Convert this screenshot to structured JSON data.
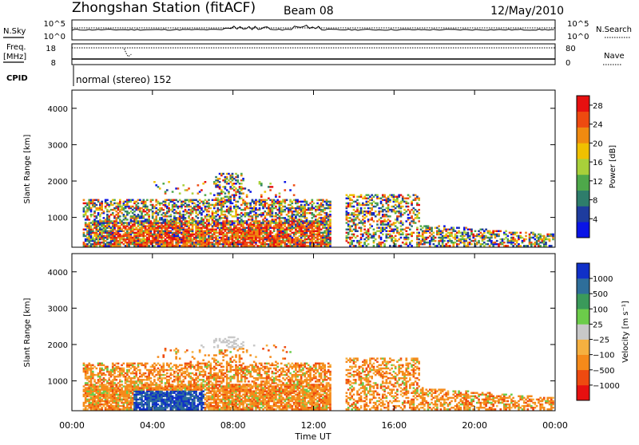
{
  "header": {
    "station_title": "Zhongshan Station (fitACF)",
    "beam_label": "Beam 08",
    "date_label": "12/May/2010"
  },
  "top_panels": {
    "nsky_label": "N.Sky",
    "nsky_ticks": [
      "10^5",
      "10^0"
    ],
    "nsearch_label": "N.Search",
    "nsearch_ticks": [
      "10^5",
      "10^0"
    ],
    "freq_label_line1": "Freq.",
    "freq_label_line2": "[MHz]",
    "freq_ticks": [
      "18",
      "8"
    ],
    "nave_label": "Nave",
    "nave_ticks": [
      "80",
      "0"
    ],
    "cpid_label": "CPID",
    "cpid_text": "normal (stereo) 152"
  },
  "colors": {
    "power_scale": [
      "#0a14e6",
      "#1e3c9e",
      "#2e7d6b",
      "#4ea84a",
      "#a8d03a",
      "#f0c000",
      "#f08a10",
      "#ee4a10",
      "#e61010"
    ],
    "velocity_scale": [
      "#e61010",
      "#ee4a10",
      "#f58a1a",
      "#f5b040",
      "#c8c8c8",
      "#6ccc4a",
      "#3a9a5a",
      "#2e6e9a",
      "#1030c8"
    ]
  },
  "chart_data": [
    {
      "type": "heatmap",
      "name": "power-panel",
      "ylabel": "Slant Range [km]",
      "xlabel": "",
      "ylim": [
        180,
        4500
      ],
      "yticks": [
        "1000",
        "2000",
        "3000",
        "4000"
      ],
      "ytick_values": [
        1000,
        2000,
        3000,
        4000
      ],
      "xlim": [
        0,
        24
      ],
      "colorbar_label": "Power [dB]",
      "colorbar_ticks": [
        "4",
        "8",
        "12",
        "16",
        "20",
        "24",
        "28"
      ],
      "colorbar_range": [
        0,
        30
      ]
    },
    {
      "type": "heatmap",
      "name": "velocity-panel",
      "ylabel": "Slant Range [km]",
      "xlabel": "Time UT",
      "ylim": [
        180,
        4500
      ],
      "yticks": [
        "1000",
        "2000",
        "3000",
        "4000"
      ],
      "ytick_values": [
        1000,
        2000,
        3000,
        4000
      ],
      "xlim": [
        0,
        24
      ],
      "xticks": [
        "00:00",
        "04:00",
        "08:00",
        "12:00",
        "16:00",
        "20:00",
        "00:00"
      ],
      "xtick_values": [
        0,
        4,
        8,
        12,
        16,
        20,
        24
      ],
      "colorbar_label": "Velocity [m s⁻¹]",
      "colorbar_ticks": [
        "1000",
        "500",
        "100",
        "25",
        "−25",
        "−100",
        "−500",
        "−1000"
      ]
    }
  ]
}
